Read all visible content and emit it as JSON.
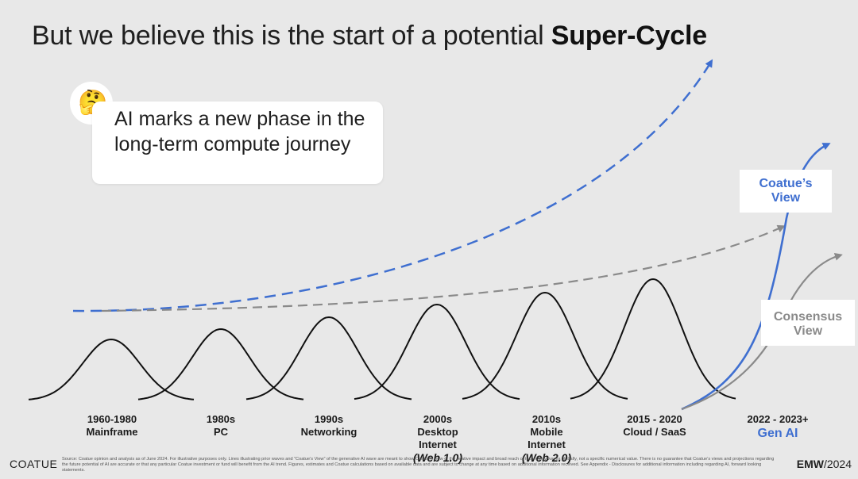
{
  "title": {
    "normal": "But we believe this is the start of a potential ",
    "bold": "Super-Cycle"
  },
  "callout": {
    "emoji": "🤔",
    "text": "AI marks a new phase in the long-term compute journey"
  },
  "views": {
    "coatue": [
      "Coatue’s",
      "View"
    ],
    "consensus": [
      "Consensus",
      "View"
    ]
  },
  "eras": [
    {
      "lines": [
        "1960-1980",
        "Mainframe"
      ]
    },
    {
      "lines": [
        "1980s",
        "PC"
      ]
    },
    {
      "lines": [
        "1990s",
        "Networking"
      ]
    },
    {
      "lines": [
        "2000s",
        "Desktop",
        "Internet"
      ],
      "sub": "(Web 1.0)"
    },
    {
      "lines": [
        "2010s",
        "Mobile",
        "Internet"
      ],
      "sub": "(Web 2.0)"
    },
    {
      "lines": [
        "2015 - 2020",
        "Cloud / SaaS"
      ]
    },
    {
      "lines": [
        "2022 - 2023+"
      ],
      "highlight": "Gen AI"
    }
  ],
  "footer": {
    "logo": "COATUE",
    "event_prefix": "EMW",
    "event_year": "/2024",
    "footnote": "Source: Coatue opinion and analysis as of June 2024. For illustrative purposes only. Lines illustrating prior waves and “Coatue’s View” of the generative AI wave are meant to show Coatue’s view of the relative impact and broad reach of technology waves globally, not a specific numerical value. There is no guarantee that Coatue’s views and projections regarding the future potential of AI are accurate or that any particular Coatue investment or fund will benefit from the AI trend. Figures, estimates and Coatue calculations based on available data and are subject to change at any time based on additional information received. See Appendix - Disclosures for additional information including regarding AI, forward looking statements."
  },
  "colors": {
    "background": "#e8e8e8",
    "coatue_blue": "#3f6fd0",
    "consensus_gray": "#8a8a8a",
    "wave_black": "#111111"
  },
  "icons": [
    "thinking-face-icon",
    "arrow-head-icon"
  ]
}
